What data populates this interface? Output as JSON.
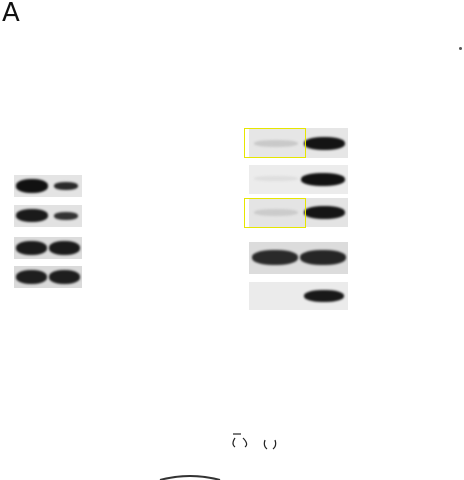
{
  "figure": {
    "panel_label": "A",
    "highlight_color": "#e6e600",
    "band_color": "#141414"
  },
  "left_blots": {
    "rows": 4,
    "lanes": 2
  },
  "right_blots": {
    "rows": 5,
    "lanes": 2,
    "highlighted_rows": [
      1,
      3
    ]
  }
}
